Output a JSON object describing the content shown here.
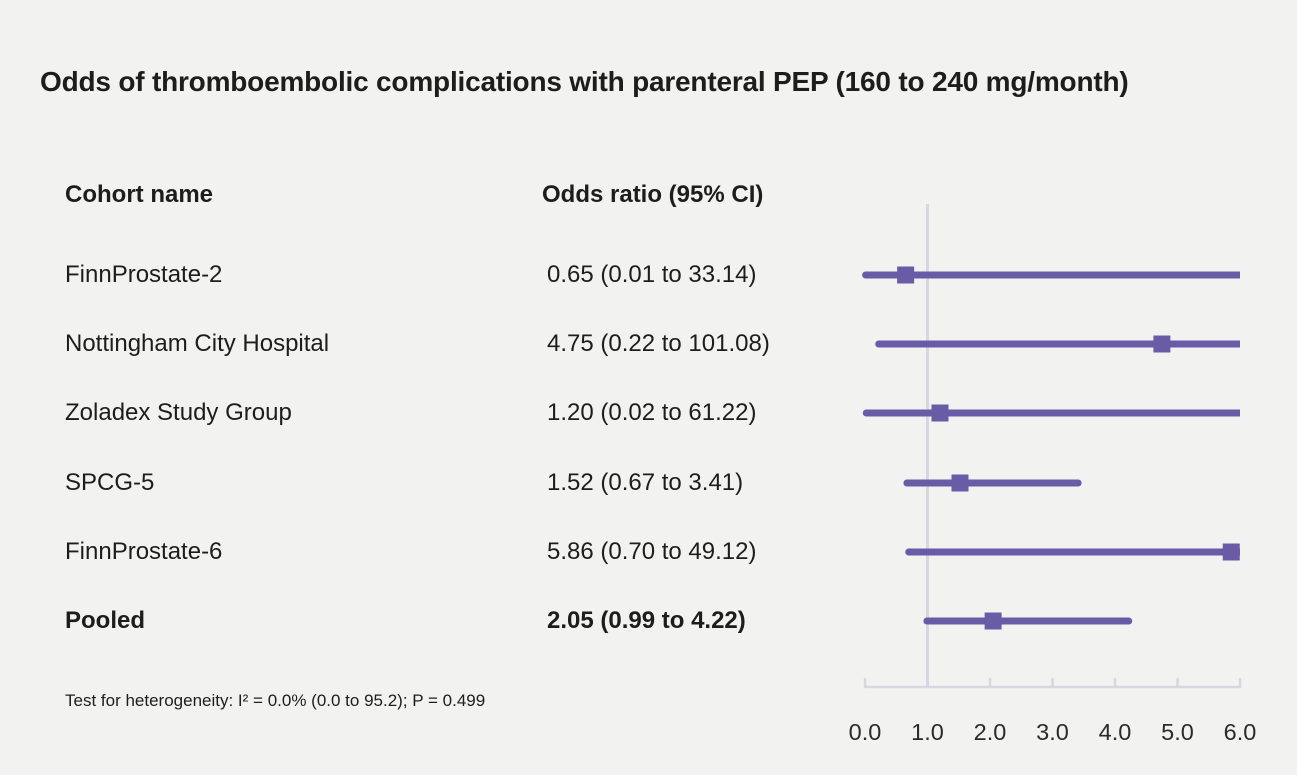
{
  "title": "Odds of thromboembolic complications with parenteral PEP (160 to 240 mg/month)",
  "table": {
    "cohort_header": "Cohort name",
    "odds_ratio_header": "Odds ratio (95% CI)"
  },
  "footnote": "Test for heterogeneity: I² = 0.0% (0.0 to 95.2); P = 0.499",
  "colors": {
    "background": "#f2f2f1",
    "text": "#1d1d1b",
    "marker": "#6a5ba6",
    "ci_line": "#6a5ba6",
    "axis": "#d5d8e0",
    "reference_line": "#d5d8e0",
    "axis_label": "#2b2b2a"
  },
  "chart_data": {
    "type": "forest",
    "title": "Odds of thromboembolic complications with parenteral PEP (160 to 240 mg/month)",
    "xlim": [
      0.0,
      6.0
    ],
    "reference_value": 1.0,
    "x_ticks": [
      "0.0",
      "1.0",
      "2.0",
      "3.0",
      "4.0",
      "5.0",
      "6.0"
    ],
    "x_tick_values": [
      0,
      1,
      2,
      3,
      4,
      5,
      6
    ],
    "rows": [
      {
        "cohort": "FinnProstate-2",
        "or_text": "0.65 (0.01 to 33.14)",
        "or": 0.65,
        "lo": 0.01,
        "hi": 33.14,
        "bold": false
      },
      {
        "cohort": "Nottingham City Hospital",
        "or_text": "4.75 (0.22 to 101.08)",
        "or": 4.75,
        "lo": 0.22,
        "hi": 101.08,
        "bold": false
      },
      {
        "cohort": "Zoladex Study Group",
        "or_text": "1.20 (0.02 to 61.22)",
        "or": 1.2,
        "lo": 0.02,
        "hi": 61.22,
        "bold": false
      },
      {
        "cohort": "SPCG-5",
        "or_text": "1.52 (0.67 to 3.41)",
        "or": 1.52,
        "lo": 0.67,
        "hi": 3.41,
        "bold": false
      },
      {
        "cohort": "FinnProstate-6",
        "or_text": "5.86 (0.70 to 49.12)",
        "or": 5.86,
        "lo": 0.7,
        "hi": 49.12,
        "bold": false
      },
      {
        "cohort": "Pooled",
        "or_text": "2.05 (0.99 to 4.22)",
        "or": 2.05,
        "lo": 0.99,
        "hi": 4.22,
        "bold": true
      }
    ],
    "heterogeneity_note": "Test for heterogeneity: I² = 0.0% (0.0 to 95.2); P = 0.499"
  }
}
